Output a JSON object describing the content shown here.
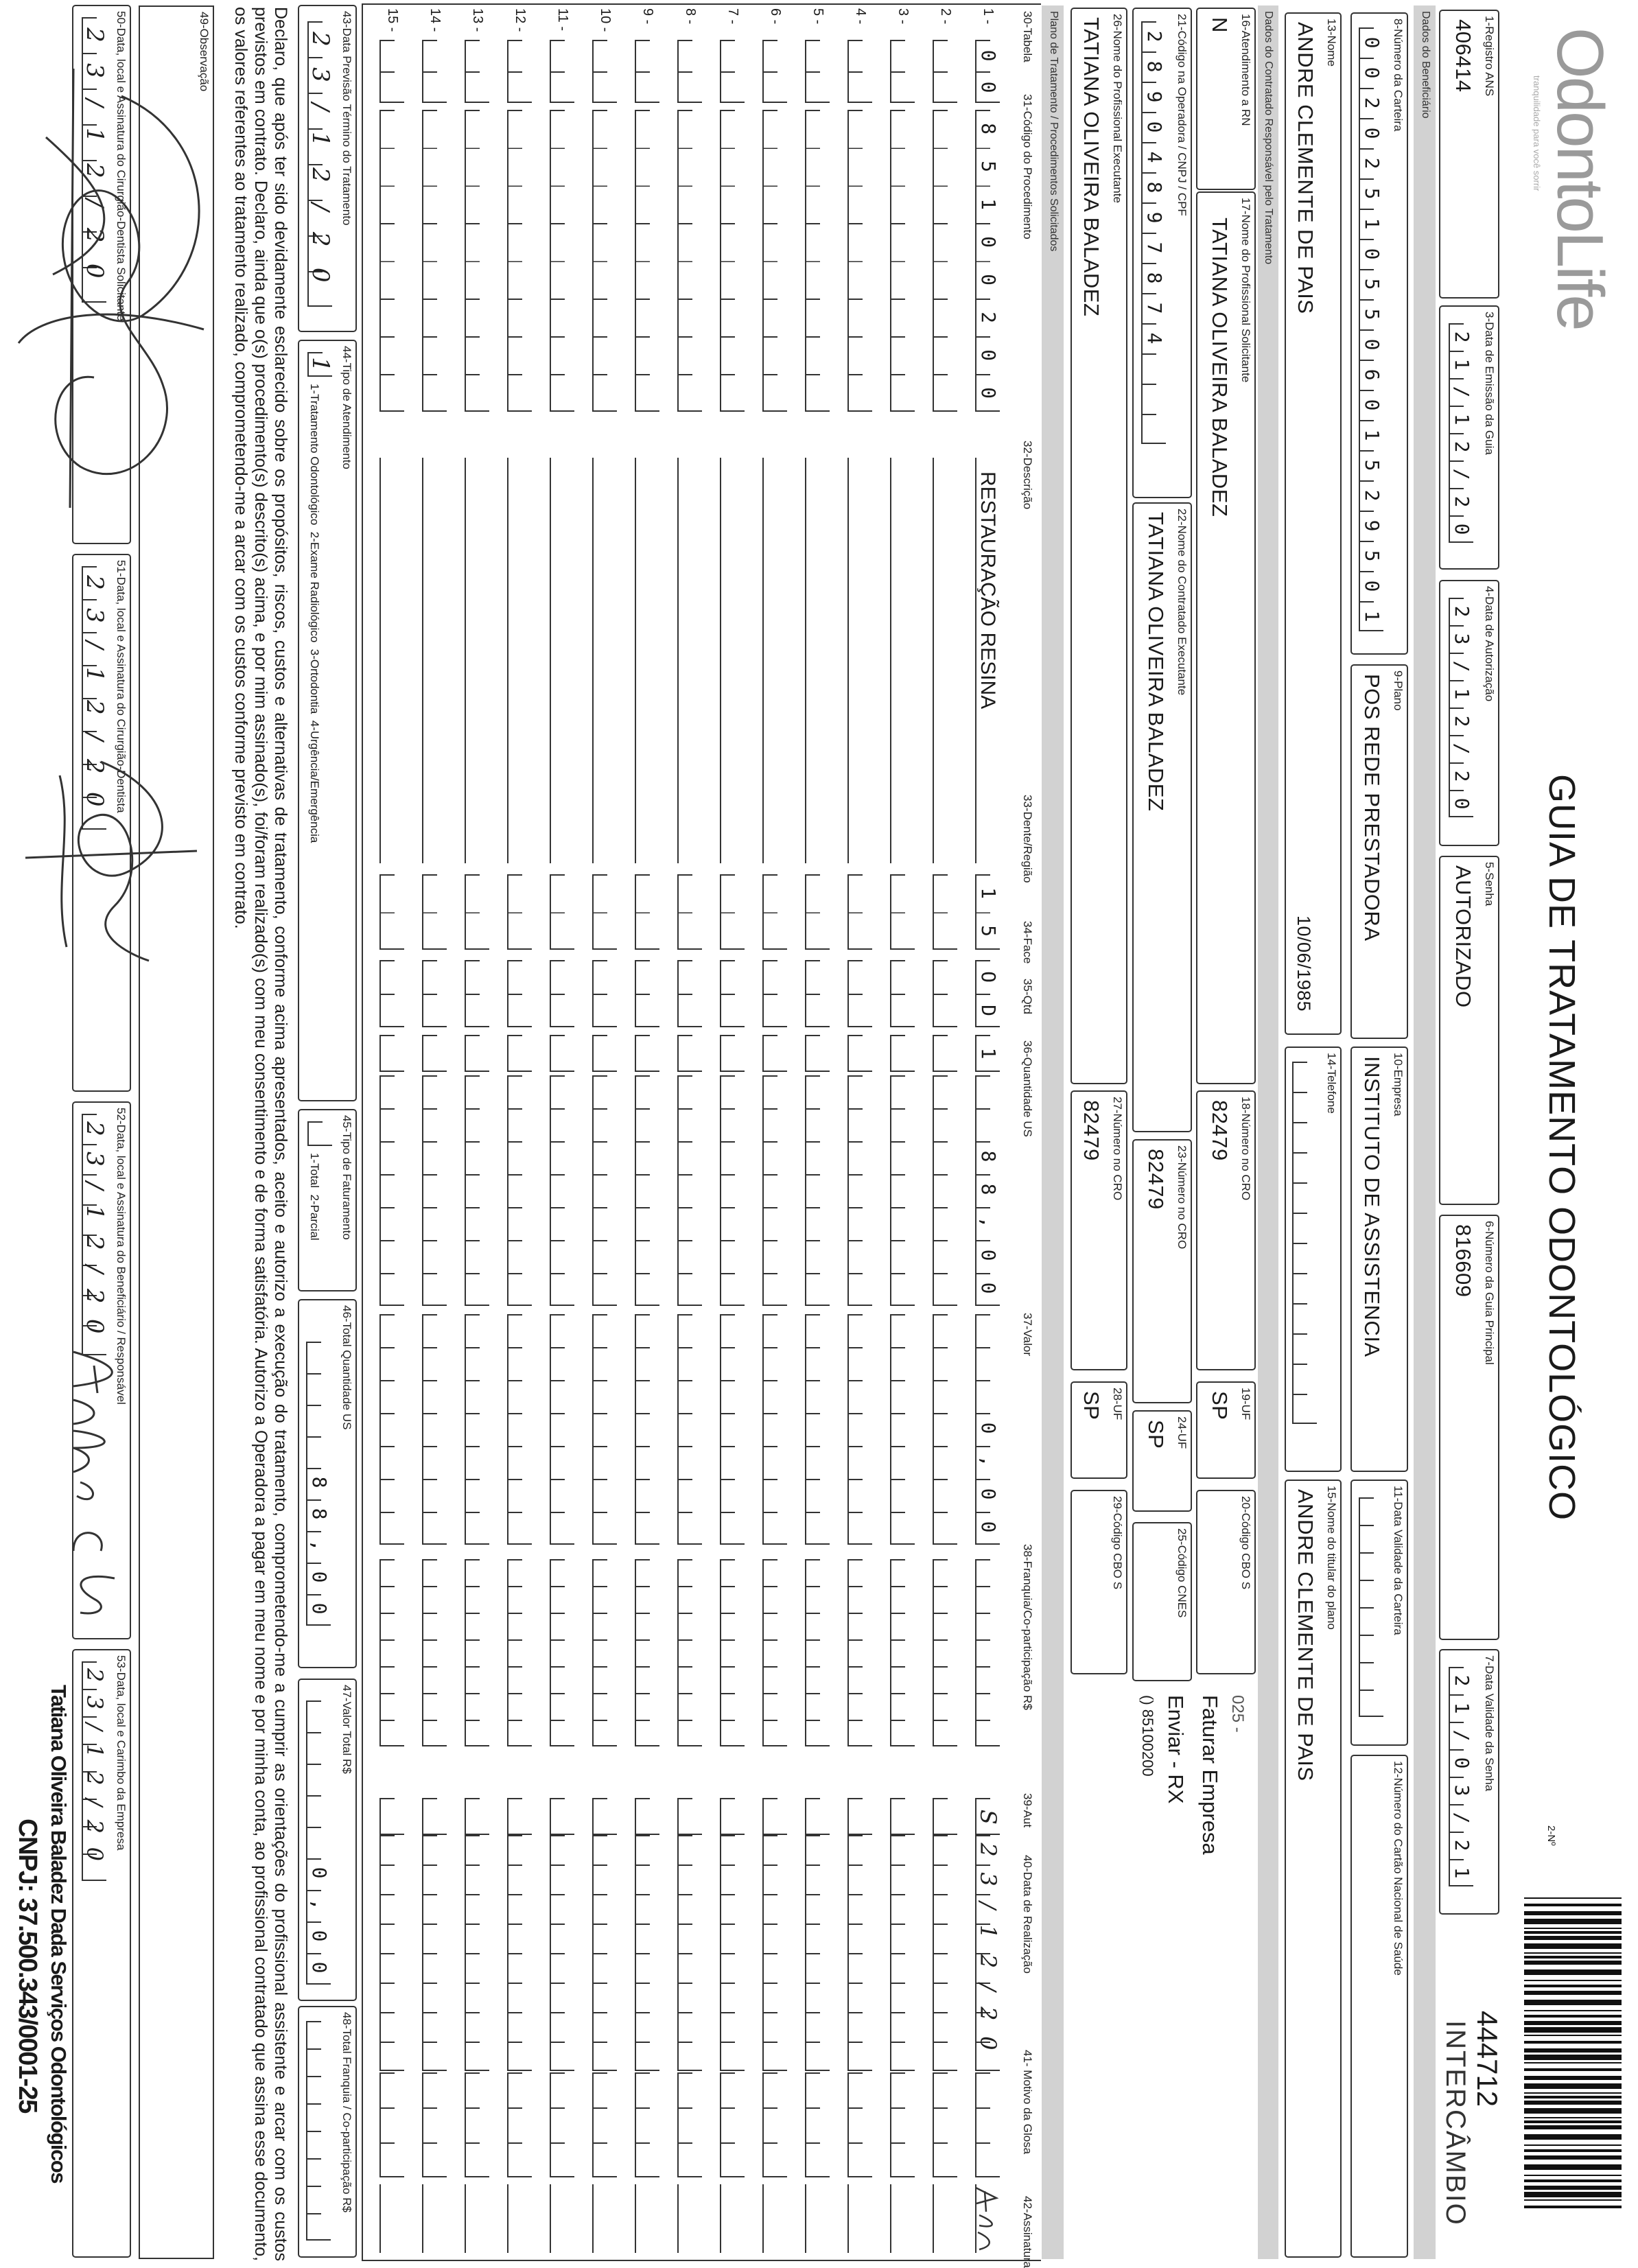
{
  "header": {
    "logo": "OdontoLife",
    "logo_tagline": "tranquilidade para você sorrir",
    "title": "GUIA DE TRATAMENTO ODONTOLÓGICO",
    "guide_no_label": "2-Nº",
    "guide_no": "444712",
    "guide_type": "INTERCÂMBIO"
  },
  "sections": {
    "beneficiario": "Dados do Beneficiário",
    "contratado": "Dados do Contratado Responsável pelo Tratamento",
    "plano": "Plano de Tratamento / Procedimentos Solicitados"
  },
  "fields": {
    "f1": {
      "label": "1-Registro ANS",
      "value": "406414"
    },
    "f3": {
      "label": "3-Data de Emissão da Guia",
      "value": "21/12/20"
    },
    "f4": {
      "label": "4-Data de Autorização",
      "value": "23/12/20"
    },
    "f5": {
      "label": "5-Senha",
      "value": "AUTORIZADO"
    },
    "f6": {
      "label": "6-Número da Guia Principal",
      "value": "816609"
    },
    "f7": {
      "label": "7-Data Validade da Senha",
      "value": "21/03/21"
    },
    "f8": {
      "label": "8-Número da Carteira",
      "value": "00202510550601529501"
    },
    "f9": {
      "label": "9-Plano",
      "value": "POS REDE PRESTADORA"
    },
    "f10": {
      "label": "10-Empresa",
      "value": "INSTITUTO DE ASSISTENCIA"
    },
    "f11": {
      "label": "11-Data Validade da Carteira"
    },
    "f12": {
      "label": "12-Número do Cartão Nacional de Saúde"
    },
    "f13": {
      "label": "13-Nome",
      "value": "ANDRE CLEMENTE DE PAIS",
      "birth_date": "10/06/1985"
    },
    "f14": {
      "label": "14-Telefone"
    },
    "f15": {
      "label": "15-Nome do titular do plano",
      "value": "ANDRE CLEMENTE DE PAIS"
    },
    "f16": {
      "label": "16-Atendimento a RN",
      "value": "N"
    },
    "f17": {
      "label": "17-Nome do Profissional Solicitante",
      "value": "TATIANA OLIVEIRA BALADEZ"
    },
    "f18": {
      "label": "18-Número no CRO",
      "value": "82479"
    },
    "f19": {
      "label": "19-UF",
      "value": "SP"
    },
    "f20": {
      "label": "20-Código CBO S"
    },
    "f21": {
      "label": "21-Código na Operadora / CNPJ / CPF",
      "value": "28904897874"
    },
    "f22": {
      "label": "22-Nome do Contratado Executante",
      "value": "TATIANA OLIVEIRA BALADEZ"
    },
    "f23": {
      "label": "23-Número no CRO",
      "value": "82479"
    },
    "f24": {
      "label": "24-UF",
      "value": "SP"
    },
    "f25": {
      "label": "25-Código CNES"
    },
    "f26": {
      "label": "26-Nome do Profissional Executante",
      "value": "TATIANA OLIVEIRA BALADEZ"
    },
    "f27": {
      "label": "27-Número no CRO",
      "value": "82479"
    },
    "f28": {
      "label": "28-UF",
      "value": "SP"
    },
    "f29": {
      "label": "29-Código CBO S"
    }
  },
  "notes": {
    "code": "025 -",
    "billing": "Faturar Empresa",
    "send": "Enviar - RX",
    "phone": "() 85100200"
  },
  "table": {
    "headers": {
      "tabela": "30-Tabela",
      "codigo": "31-Código do Procedimento",
      "descricao": "32-Descrição",
      "dente": "33-Dente/Região",
      "face": "34-Face",
      "qtd": "35-Qtd",
      "quantidade_us": "36-Quantidade US",
      "valor": "37-Valor",
      "franquia": "38-Franquia/Co-participação R$",
      "aut": "39-Aut",
      "data_realizacao": "40-Data de Realização",
      "motivo_glosa": "41- Motivo da Glosa",
      "assinatura": "42-Assinatura"
    },
    "rows": [
      {
        "n": "1 -",
        "tabela": "00",
        "codigo": "85100200",
        "descricao": "RESTAURAÇÃO RESINA",
        "dente": "15",
        "face": "OD",
        "qtd": "1",
        "quantidade_us": "88,00",
        "valor": "0,00",
        "aut": "S",
        "data_realizacao": "23/12/20",
        "signed": true
      },
      {
        "n": "2 -"
      },
      {
        "n": "3 -"
      },
      {
        "n": "4 -"
      },
      {
        "n": "5 -"
      },
      {
        "n": "6 -"
      },
      {
        "n": "7 -"
      },
      {
        "n": "8 -"
      },
      {
        "n": "9 -"
      },
      {
        "n": "10 -"
      },
      {
        "n": "11 -"
      },
      {
        "n": "12 -"
      },
      {
        "n": "13 -"
      },
      {
        "n": "14 -"
      },
      {
        "n": "15 -"
      }
    ]
  },
  "totals": {
    "f43": {
      "label": "43-Data Previsão Término do Tratamento",
      "value": "23/12/20"
    },
    "f44": {
      "label": "44-Tipo de Atendimento",
      "value": "1",
      "options": "1-Tratamento Odontológico  2-Exame Radiológico  3-Ortodontia  4-Urgência/Emergência"
    },
    "f45": {
      "label": "45-Tipo de Faturamento",
      "options": "1-Total  2-Parcial"
    },
    "f46": {
      "label": "46-Total Quantidade US",
      "value": "88,00"
    },
    "f47": {
      "label": "47-Valor Total R$",
      "value": "0,00"
    },
    "f48": {
      "label": "48-Total Franquia / Co-participação R$"
    }
  },
  "declaration": "Declaro, que após ter sido devidamente esclarecido sobre os propósitos, riscos, custos e alternativas de tratamento, conforme acima apresentados, aceito e autorizo a execução do tratamento, comprometendo-me a cumprir as orientações do profissional assistente e arcar com os custos previstos em contrato. Declaro, ainda que o(s) procedimento(s) descrito(s) acima, e por mim assinado(s), foi/foram realizado(s) com meu consentimento e de forma satisfatória. Autorizo a Operadora a pagar em meu nome e por minha conta, ao profissional contratado que assina esse documento, os valores referentes ao tratamento realizado, comprometendo-me a arcar com os custos conforme previsto em contrato.",
  "observacao": {
    "label": "49-Observação"
  },
  "signatures": {
    "f50": {
      "label": "50-Data, local e Assinatura do Cirurgião-Dentista Solicitante",
      "date": "23/12/20"
    },
    "f51": {
      "label": "51-Data, local e Assinatura do Cirurgião-Dentista",
      "date": "23/12/20"
    },
    "f52": {
      "label": "52-Data, local e Assinatura do Beneficiário / Responsável",
      "date": "23/12/20"
    },
    "f53": {
      "label": "53-Data, local e Carimbo da Empresa",
      "date": "23/12/20"
    }
  },
  "stamp": {
    "name": "Tatiana Oliveira Baladez Dada Serviços Odontológicos",
    "cnpj": "CNPJ: 37.500.343/0001-25"
  },
  "colors": {
    "ink": "#1a1a1a",
    "band": "#d2d2d2",
    "logo": "#9a9a9a"
  }
}
